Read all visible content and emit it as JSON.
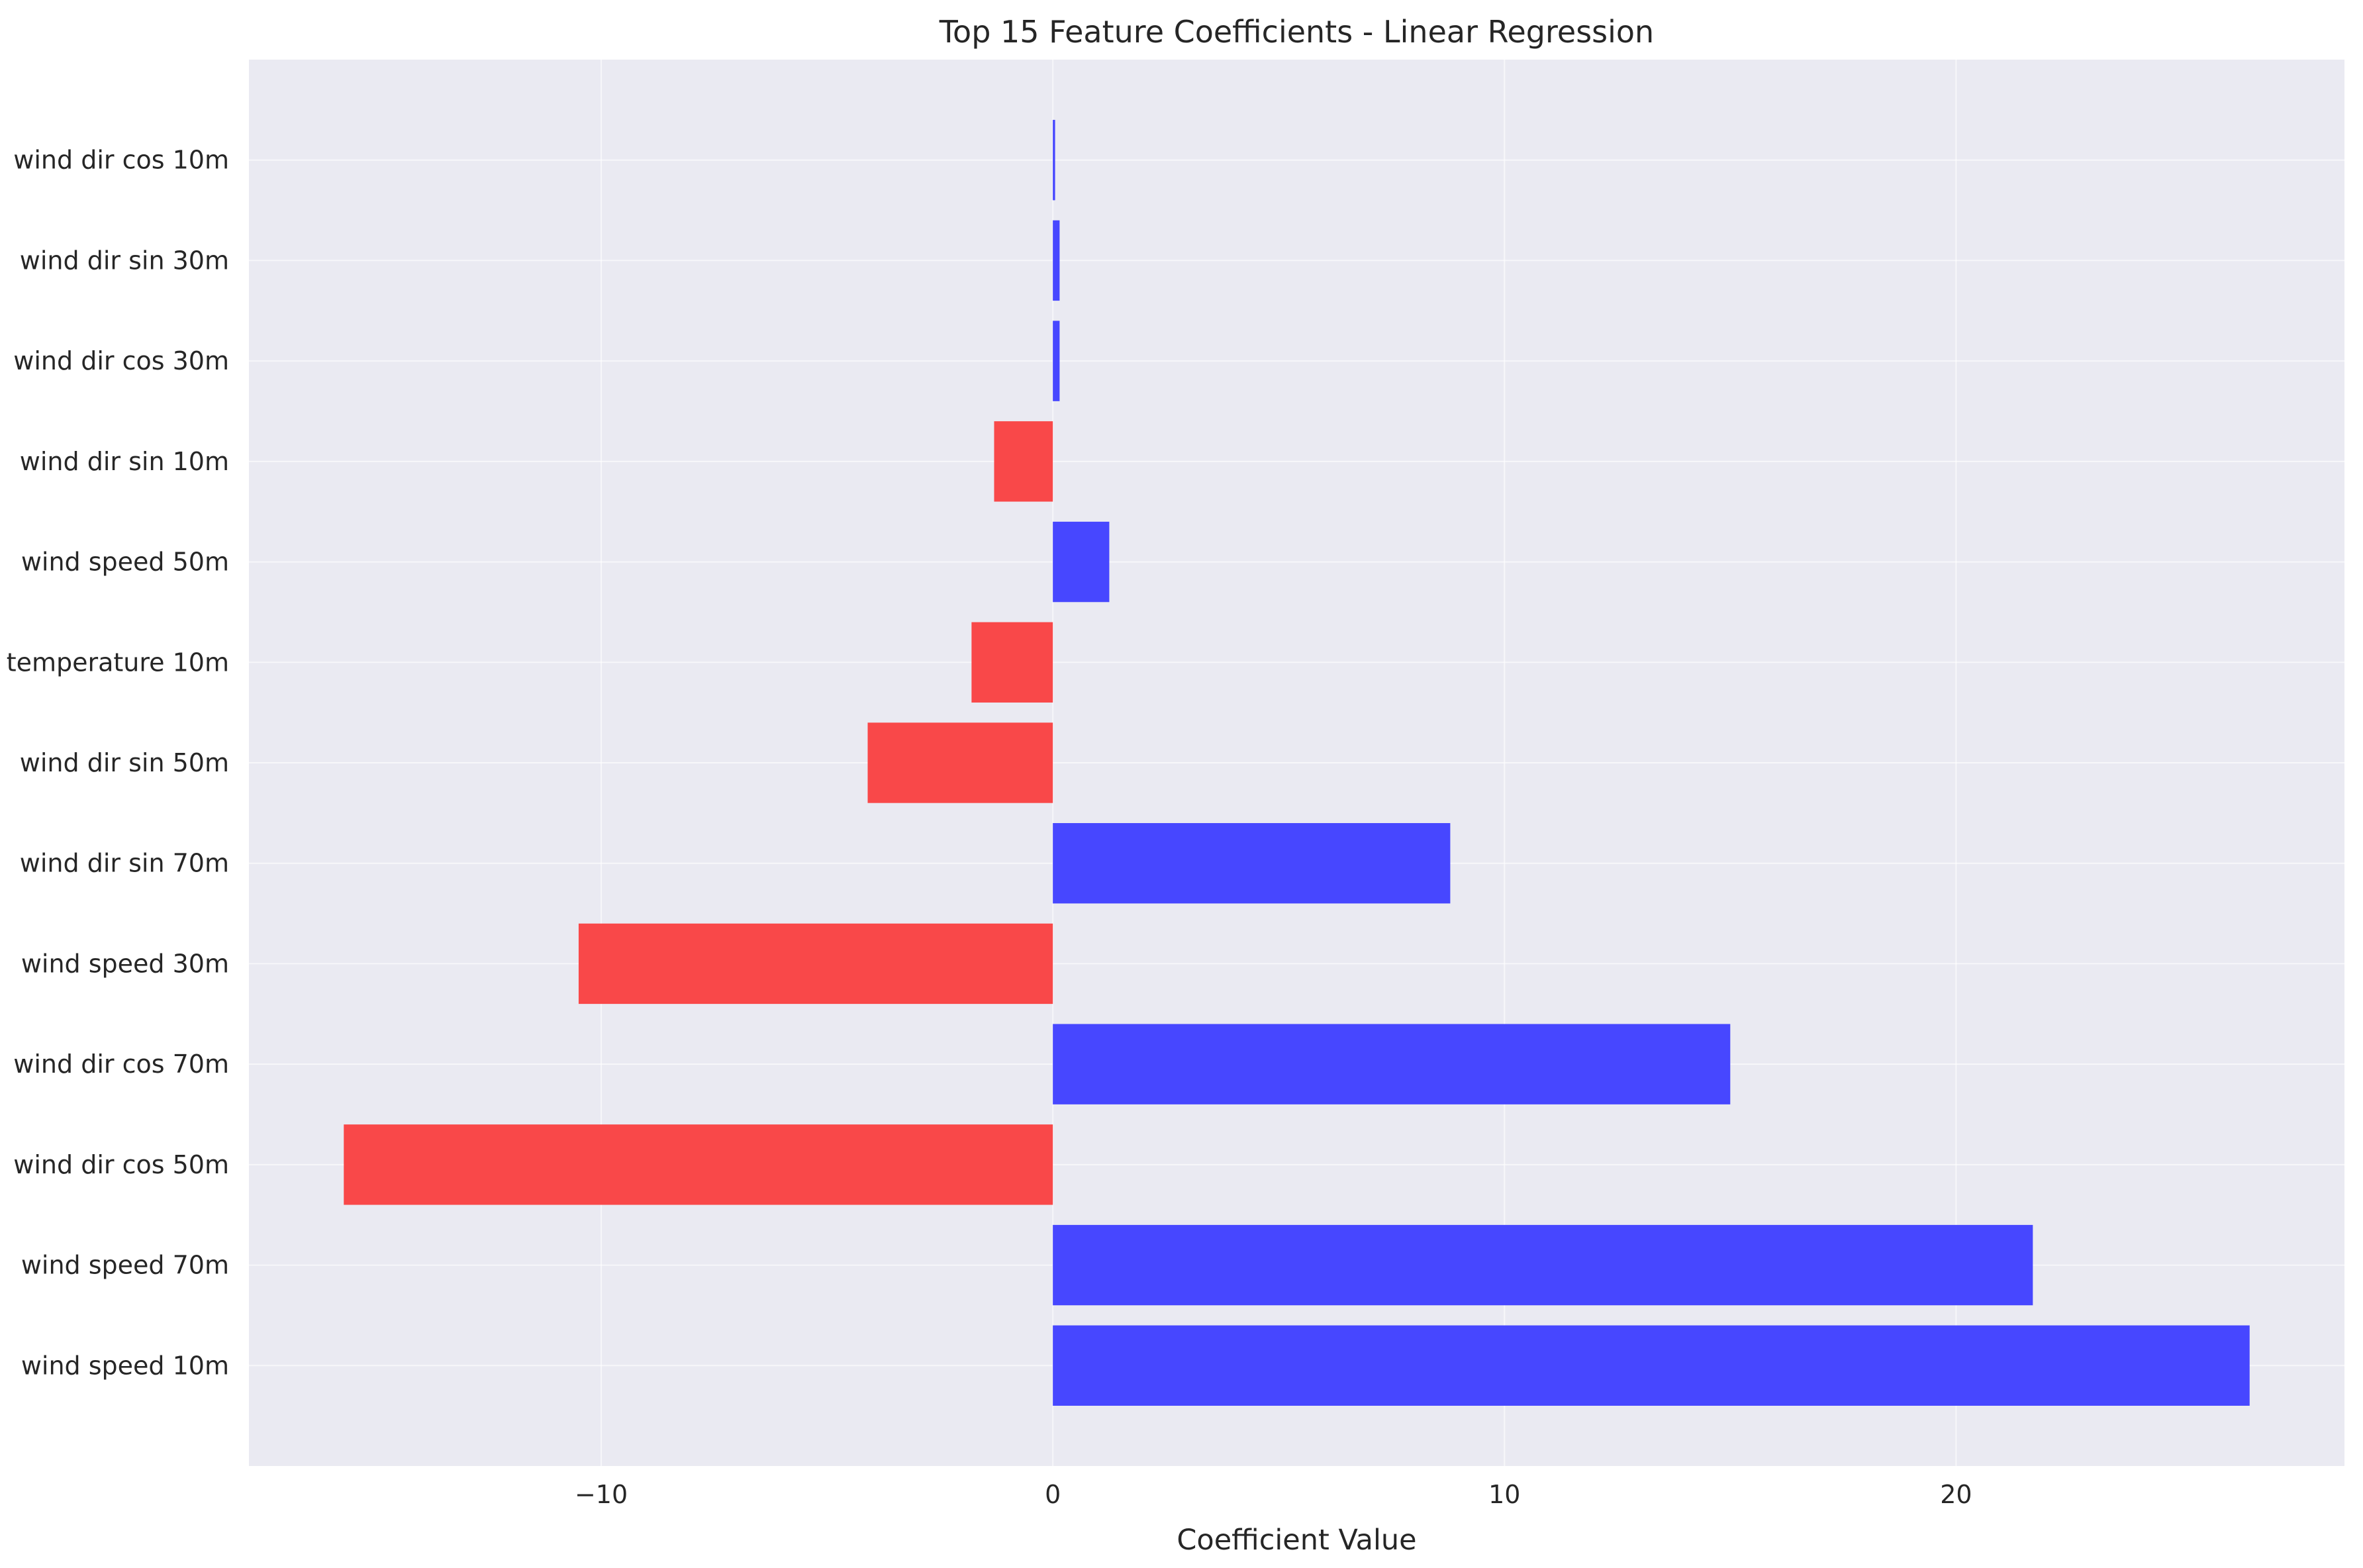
{
  "chart_data": {
    "type": "bar",
    "orientation": "horizontal",
    "title": "Top 15 Feature Coefficients - Linear Regression",
    "xlabel": "Coefficient Value",
    "ylabel": "",
    "categories": [
      "wind speed 10m",
      "wind speed 70m",
      "wind dir cos 50m",
      "wind dir cos 70m",
      "wind speed 30m",
      "wind dir sin 70m",
      "wind dir sin 50m",
      "temperature 10m",
      "wind speed 50m",
      "wind dir sin 10m",
      "wind dir cos 30m",
      "wind dir sin 30m",
      "wind dir cos 10m"
    ],
    "values": [
      26.5,
      21.7,
      -15.7,
      15.0,
      -10.5,
      8.8,
      -4.1,
      -1.8,
      1.25,
      -1.3,
      0.15,
      0.15,
      0.05
    ],
    "xlim": [
      -17.8,
      28.6
    ],
    "xticks": [
      -10,
      0,
      10,
      20
    ],
    "xtick_labels": [
      "−10",
      "0",
      "10",
      "20"
    ],
    "grid": true,
    "colors": {
      "positive": "#4747FF",
      "negative": "#F94849",
      "plot_background": "#EAEAF2",
      "grid": "#ffffff"
    }
  }
}
